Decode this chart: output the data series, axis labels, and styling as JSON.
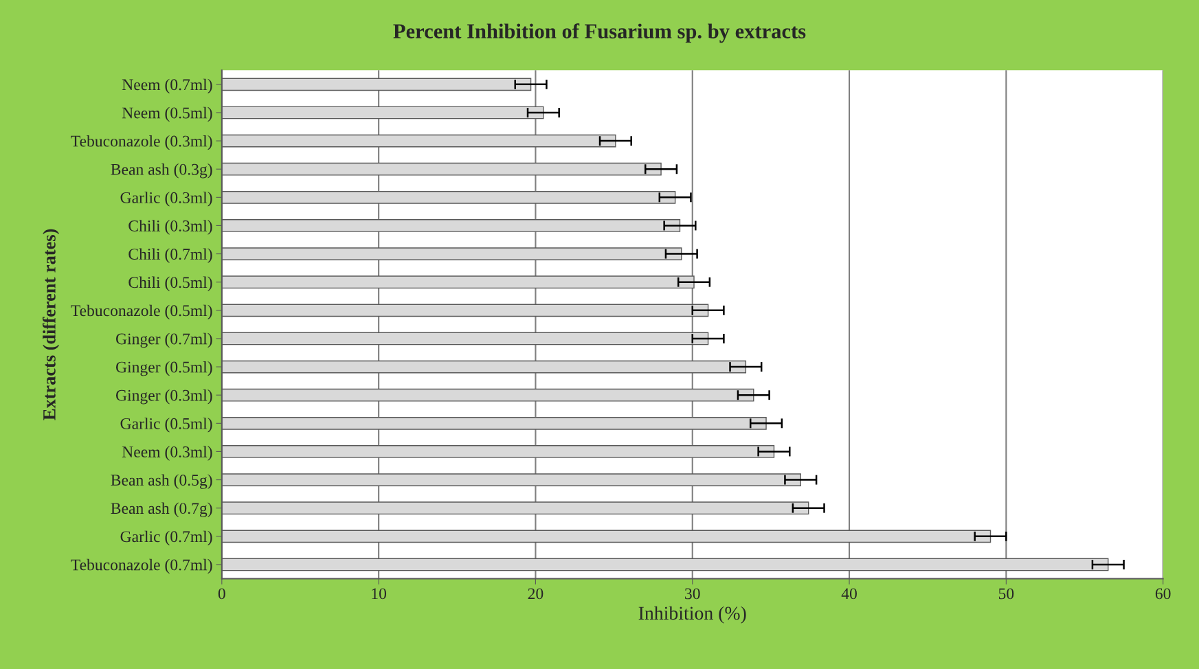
{
  "chart_data": {
    "type": "bar",
    "orientation": "horizontal",
    "title": "Percent Inhibition of Fusarium sp. by extracts",
    "xlabel": "Inhibition (%)",
    "ylabel": "Extracts (different rates)",
    "categories": [
      "Neem (0.7ml)",
      "Neem (0.5ml)",
      "Tebuconazole (0.3ml)",
      "Bean ash (0.3g)",
      "Garlic (0.3ml)",
      "Chili (0.3ml)",
      "Chili (0.7ml)",
      "Chili (0.5ml)",
      "Tebuconazole (0.5ml)",
      "Ginger (0.7ml)",
      "Ginger (0.5ml)",
      "Ginger (0.3ml)",
      "Garlic (0.5ml)",
      "Neem (0.3ml)",
      "Bean ash (0.5g)",
      "Bean ash (0.7g)",
      "Garlic (0.7ml)",
      "Tebuconazole (0.7ml)"
    ],
    "values": [
      19.7,
      20.5,
      25.1,
      28.0,
      28.9,
      29.2,
      29.3,
      30.1,
      31.0,
      31.0,
      33.4,
      33.9,
      34.7,
      35.2,
      36.9,
      37.4,
      49.0,
      56.5
    ],
    "errors": [
      1,
      1,
      1,
      1,
      1,
      1,
      1,
      1,
      1,
      1,
      1,
      1,
      1,
      1,
      1,
      1,
      1,
      1
    ],
    "color": "#d9d9d9",
    "xlim": [
      0,
      60
    ],
    "xticks": [
      0,
      10,
      20,
      30,
      40,
      50,
      60
    ],
    "grid": "x",
    "legend": false
  }
}
